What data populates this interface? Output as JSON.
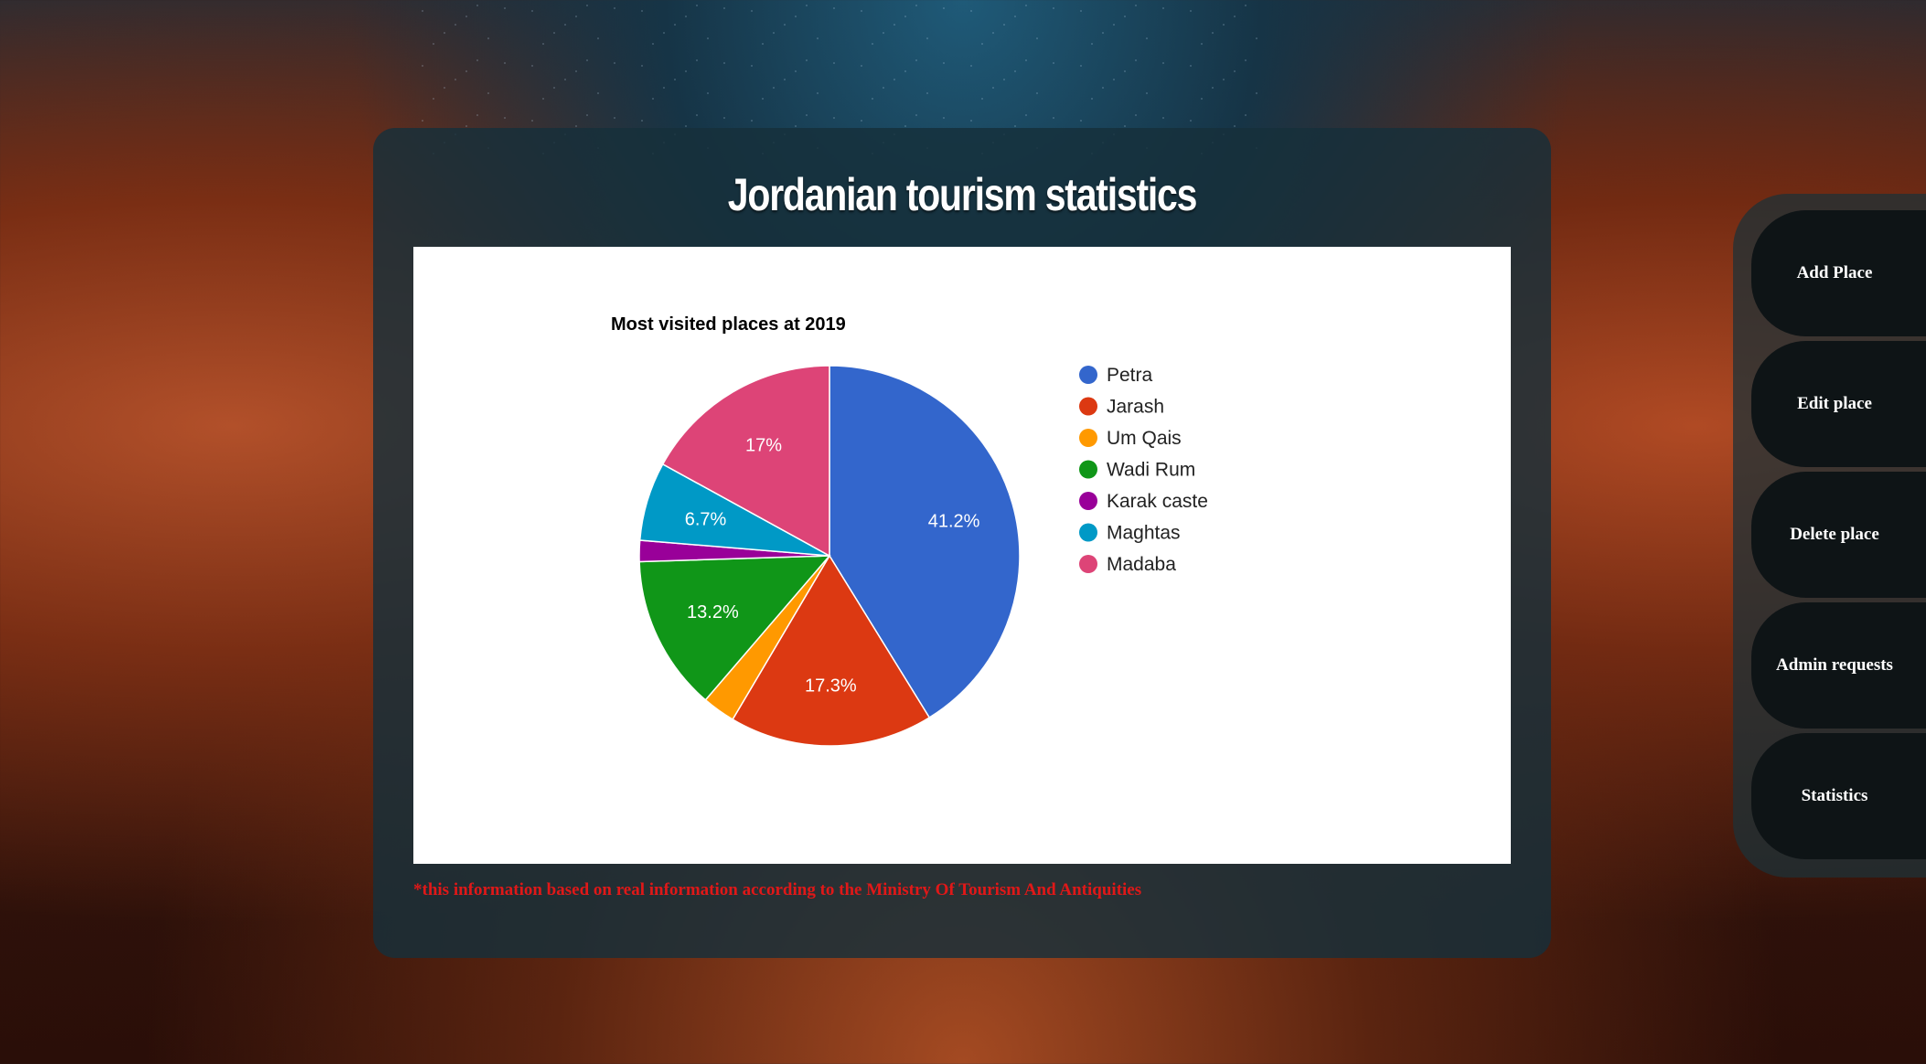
{
  "page": {
    "title": "Jordanian tourism statistics",
    "footnote": "*this information based on real information according to the Ministry Of Tourism And Antiquities"
  },
  "sidebar": {
    "items": [
      {
        "label": "Add Place"
      },
      {
        "label": "Edit place"
      },
      {
        "label": "Delete place"
      },
      {
        "label": "Admin requests"
      },
      {
        "label": "Statistics"
      }
    ]
  },
  "chart_data": {
    "type": "pie",
    "title": "Most visited places at 2019",
    "labels": [
      "Petra",
      "Jarash",
      "Um Qais",
      "Wadi Rum",
      "Karak caste",
      "Maghtas",
      "Madaba"
    ],
    "values": [
      41.2,
      17.3,
      2.8,
      13.2,
      1.8,
      6.7,
      17.0
    ],
    "slice_labels": [
      "41.2%",
      "17.3%",
      "",
      "13.2%",
      "",
      "6.7%",
      "17%"
    ],
    "colors": [
      "#3366cc",
      "#dc3912",
      "#ff9900",
      "#109618",
      "#990099",
      "#0099c6",
      "#dd4477"
    ],
    "legend": "right",
    "start_angle": "top",
    "direction": "clockwise"
  }
}
